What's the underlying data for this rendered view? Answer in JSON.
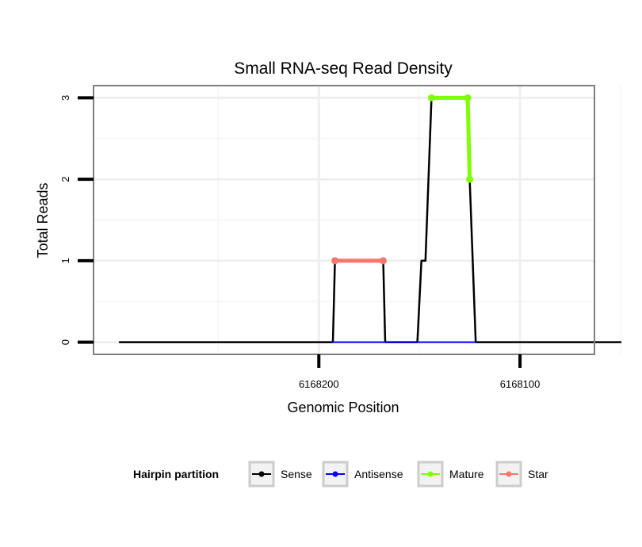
{
  "chart_data": {
    "type": "line",
    "title": "Small RNA-seq Read Density",
    "xlabel": "Genomic Position",
    "ylabel": "Total Reads",
    "x_reversed": true,
    "xlim": [
      6168312,
      6168063
    ],
    "ylim": [
      -0.15,
      3.15
    ],
    "x_ticks": [
      6168200,
      6168100
    ],
    "x_tick_labels": [
      "6168200",
      "6168100"
    ],
    "y_ticks": [
      0,
      1,
      2,
      3
    ],
    "y_tick_labels": [
      "0",
      "1",
      "2",
      "3"
    ],
    "x_minor_gridlines": [
      6168250,
      6168150,
      6168050
    ],
    "y_minor_gridlines": [
      0.5,
      1.5,
      2.5
    ],
    "series": [
      {
        "name": "Sense",
        "color": "#000000",
        "points": [
          [
            6168299,
            0
          ],
          [
            6168193,
            0
          ],
          [
            6168192,
            1
          ],
          [
            6168168,
            1
          ],
          [
            6168167,
            0
          ],
          [
            6168151,
            0
          ],
          [
            6168149,
            1
          ],
          [
            6168147,
            1
          ],
          [
            6168144,
            3
          ],
          [
            6168126,
            3
          ],
          [
            6168125,
            2
          ],
          [
            6168122,
            0
          ],
          [
            6168050,
            0
          ]
        ]
      },
      {
        "name": "Antisense",
        "color": "#0000ff",
        "points": [
          [
            6168193,
            0
          ],
          [
            6168167,
            0
          ],
          [
            6168151,
            0
          ],
          [
            6168122,
            0
          ]
        ]
      },
      {
        "name": "Mature",
        "color": "#7fff00",
        "points": [
          [
            6168144,
            3
          ],
          [
            6168126,
            3
          ],
          [
            6168125,
            2
          ]
        ]
      },
      {
        "name": "Star",
        "color": "#f8766d",
        "points": [
          [
            6168192,
            1
          ],
          [
            6168168,
            1
          ]
        ]
      }
    ],
    "legend": {
      "title": "Hairpin partition",
      "position": "bottom",
      "entries": [
        {
          "label": "Sense",
          "color": "#000000"
        },
        {
          "label": "Antisense",
          "color": "#0000ff"
        },
        {
          "label": "Mature",
          "color": "#7fff00"
        },
        {
          "label": "Star",
          "color": "#f8766d"
        }
      ]
    }
  }
}
